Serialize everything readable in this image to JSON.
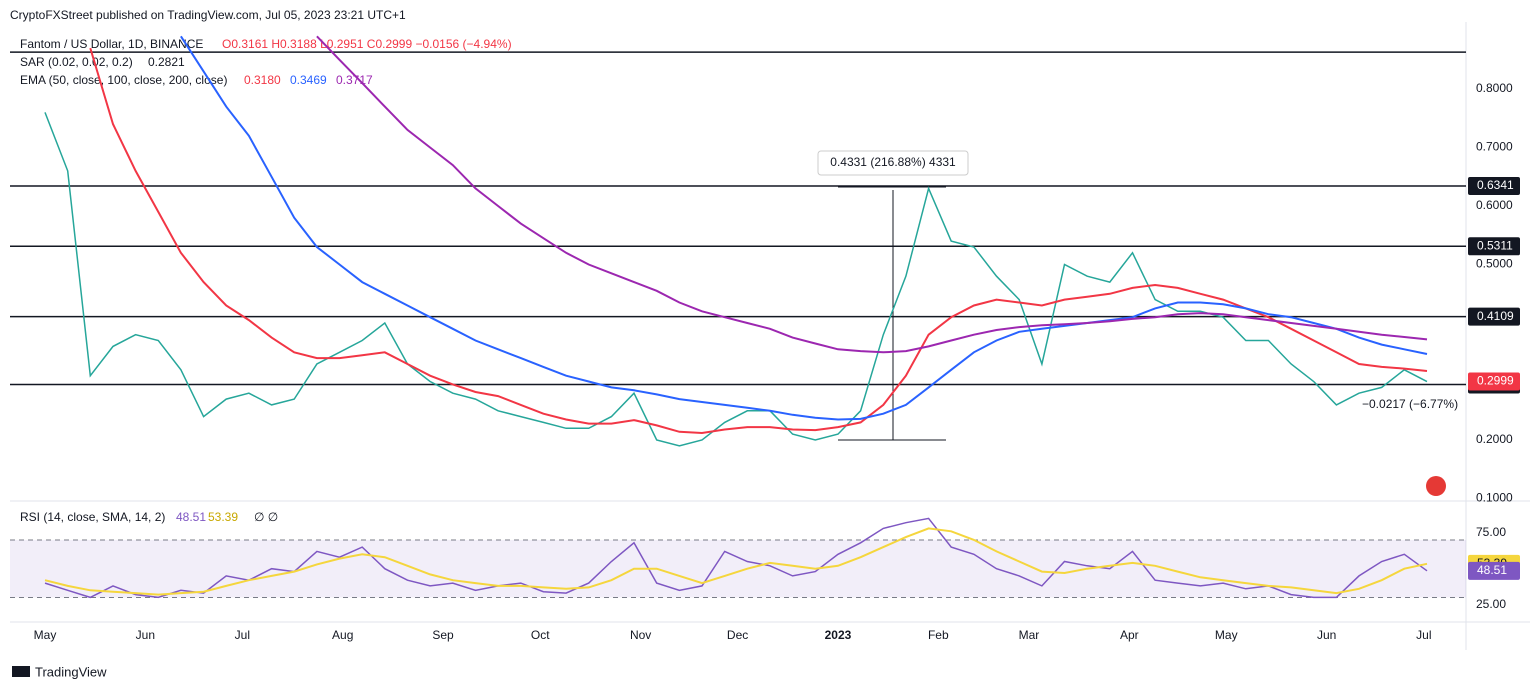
{
  "header": {
    "published": "CryptoFXStreet published on TradingView.com, Jul 05, 2023 23:21 UTC+1",
    "symbol": "Fantom / US Dollar, 1D, BINANCE",
    "ohlc": "O0.3161 H0.3188 L0.2951 C0.2999 −0.0156 (−4.94%)",
    "sar": "SAR (0.02, 0.02, 0.2)",
    "sar_value": "0.2821",
    "ema": "EMA (50, close, 100, close, 200, close)",
    "ema_values": [
      "0.3180",
      "0.3469",
      "0.3717"
    ],
    "rsi": "RSI (14, close, SMA, 14, 2)",
    "rsi_values": [
      "48.51",
      "53.39"
    ],
    "rsi_na": "∅ ∅"
  },
  "footer": "TradingView",
  "chart_data": [
    {
      "type": "line",
      "ylim": [
        0.1,
        0.9
      ],
      "yticks": [
        {
          "value": 0.1,
          "label": "0.1000"
        },
        {
          "value": 0.2,
          "label": "0.2000"
        },
        {
          "value": 0.5,
          "label": "0.5000"
        },
        {
          "value": 0.6,
          "label": "0.6000"
        },
        {
          "value": 0.7,
          "label": "0.7000"
        },
        {
          "value": 0.8,
          "label": "0.8000"
        }
      ],
      "xticks": [
        {
          "value": 0,
          "label": "May"
        },
        {
          "value": 4.43,
          "label": "Jun"
        },
        {
          "value": 8.71,
          "label": "Jul"
        },
        {
          "value": 13.14,
          "label": "Aug"
        },
        {
          "value": 17.57,
          "label": "Sep"
        },
        {
          "value": 21.86,
          "label": "Oct"
        },
        {
          "value": 26.29,
          "label": "Nov"
        },
        {
          "value": 30.57,
          "label": "Dec"
        },
        {
          "value": 35,
          "label": "2023"
        },
        {
          "value": 39.43,
          "label": "Feb"
        },
        {
          "value": 43.43,
          "label": "Mar"
        },
        {
          "value": 47.86,
          "label": "Apr"
        },
        {
          "value": 52.14,
          "label": "May"
        },
        {
          "value": 56.57,
          "label": "Jun"
        },
        {
          "value": 60.86,
          "label": "Jul"
        }
      ],
      "levels": [
        0.6341,
        0.5311,
        0.4109,
        0.2949
      ],
      "unlabeled_levels": [
        0.863
      ],
      "annotations": [
        "0.4331 (216.88%) 4331",
        "−0.0217 (−6.77%)"
      ],
      "series": [
        {
          "name": "Price",
          "color": "#26a69a",
          "values": [
            0.76,
            0.66,
            0.31,
            0.36,
            0.38,
            0.37,
            0.32,
            0.24,
            0.27,
            0.28,
            0.26,
            0.27,
            0.33,
            0.35,
            0.37,
            0.4,
            0.33,
            0.3,
            0.28,
            0.27,
            0.25,
            0.24,
            0.23,
            0.22,
            0.22,
            0.24,
            0.28,
            0.2,
            0.19,
            0.2,
            0.23,
            0.25,
            0.25,
            0.21,
            0.2,
            0.21,
            0.25,
            0.38,
            0.48,
            0.63,
            0.54,
            0.53,
            0.48,
            0.44,
            0.33,
            0.5,
            0.48,
            0.47,
            0.52,
            0.44,
            0.42,
            0.42,
            0.41,
            0.37,
            0.37,
            0.33,
            0.3,
            0.26,
            0.28,
            0.29,
            0.32,
            0.2999
          ]
        },
        {
          "name": "EMA 50",
          "color": "#f23645",
          "values": [
            null,
            null,
            0.87,
            0.74,
            0.66,
            0.59,
            0.52,
            0.47,
            0.43,
            0.405,
            0.375,
            0.35,
            0.34,
            0.34,
            0.345,
            0.35,
            0.33,
            0.31,
            0.295,
            0.282,
            0.275,
            0.26,
            0.245,
            0.235,
            0.228,
            0.228,
            0.234,
            0.225,
            0.214,
            0.212,
            0.218,
            0.222,
            0.222,
            0.218,
            0.217,
            0.222,
            0.23,
            0.26,
            0.31,
            0.38,
            0.41,
            0.43,
            0.44,
            0.435,
            0.43,
            0.44,
            0.445,
            0.45,
            0.46,
            0.465,
            0.46,
            0.45,
            0.44,
            0.425,
            0.41,
            0.39,
            0.37,
            0.35,
            0.33,
            0.325,
            0.322,
            0.318
          ]
        },
        {
          "name": "EMA 100",
          "color": "#2962ff",
          "values": [
            null,
            null,
            null,
            null,
            null,
            null,
            0.89,
            0.83,
            0.77,
            0.72,
            0.65,
            0.58,
            0.53,
            0.5,
            0.47,
            0.45,
            0.43,
            0.41,
            0.39,
            0.37,
            0.355,
            0.34,
            0.325,
            0.31,
            0.3,
            0.29,
            0.285,
            0.278,
            0.27,
            0.265,
            0.26,
            0.255,
            0.25,
            0.243,
            0.238,
            0.235,
            0.236,
            0.245,
            0.26,
            0.29,
            0.32,
            0.35,
            0.37,
            0.385,
            0.39,
            0.395,
            0.4,
            0.405,
            0.41,
            0.425,
            0.435,
            0.435,
            0.432,
            0.425,
            0.415,
            0.41,
            0.4,
            0.39,
            0.375,
            0.363,
            0.355,
            0.347
          ]
        },
        {
          "name": "EMA 200",
          "color": "#9c27b0",
          "values": [
            null,
            null,
            null,
            null,
            null,
            null,
            null,
            null,
            null,
            null,
            null,
            null,
            0.89,
            0.85,
            0.81,
            0.77,
            0.73,
            0.7,
            0.67,
            0.63,
            0.6,
            0.57,
            0.545,
            0.52,
            0.5,
            0.485,
            0.47,
            0.455,
            0.435,
            0.42,
            0.41,
            0.4,
            0.39,
            0.375,
            0.365,
            0.355,
            0.352,
            0.35,
            0.352,
            0.36,
            0.37,
            0.38,
            0.388,
            0.393,
            0.396,
            0.398,
            0.4,
            0.403,
            0.407,
            0.41,
            0.415,
            0.417,
            0.415,
            0.41,
            0.405,
            0.4,
            0.395,
            0.39,
            0.385,
            0.38,
            0.376,
            0.372
          ]
        }
      ]
    },
    {
      "type": "line",
      "ylim": [
        15,
        95
      ],
      "yticks": [
        {
          "value": 25,
          "label": "25.00"
        },
        {
          "value": 75,
          "label": "75.00"
        }
      ],
      "band": [
        30,
        70
      ],
      "series": [
        {
          "name": "RSI",
          "color": "#7e57c2",
          "values": [
            40,
            35,
            30,
            38,
            32,
            30,
            35,
            33,
            45,
            42,
            50,
            48,
            62,
            58,
            65,
            50,
            42,
            38,
            40,
            35,
            38,
            40,
            34,
            33,
            40,
            55,
            68,
            40,
            35,
            38,
            62,
            55,
            52,
            45,
            48,
            60,
            68,
            78,
            82,
            85,
            65,
            60,
            50,
            45,
            38,
            55,
            52,
            50,
            62,
            42,
            40,
            38,
            40,
            36,
            38,
            32,
            30,
            30,
            45,
            55,
            60,
            48.51
          ]
        },
        {
          "name": "SMA",
          "color": "#f5d63d",
          "values": [
            42,
            38,
            35,
            34,
            33,
            32,
            33,
            34,
            38,
            42,
            45,
            48,
            53,
            57,
            60,
            58,
            52,
            46,
            42,
            40,
            38,
            38,
            37,
            36,
            37,
            42,
            50,
            50,
            45,
            40,
            45,
            50,
            54,
            52,
            50,
            52,
            58,
            65,
            72,
            78,
            76,
            70,
            62,
            55,
            48,
            47,
            50,
            52,
            54,
            52,
            48,
            44,
            42,
            40,
            38,
            37,
            35,
            33,
            36,
            42,
            50,
            53.39
          ]
        }
      ]
    }
  ]
}
